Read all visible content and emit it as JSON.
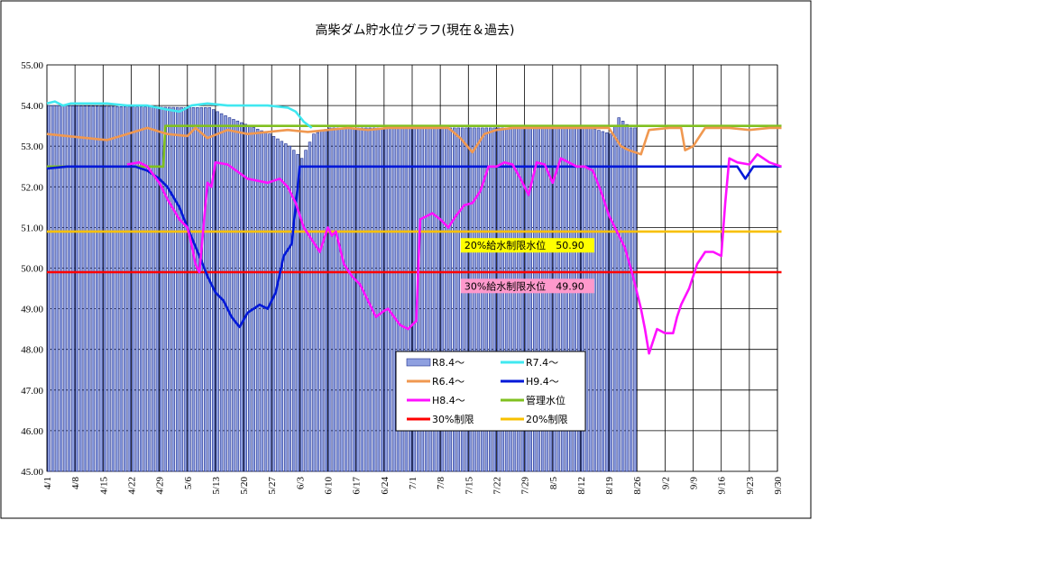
{
  "chart_data": {
    "type": "bar+line",
    "title": "高柴ダム貯水位グラフ(現在＆過去)",
    "ylim": [
      45.0,
      55.0
    ],
    "y_ticks": [
      "45.00",
      "46.00",
      "47.00",
      "48.00",
      "49.00",
      "50.00",
      "51.00",
      "52.00",
      "53.00",
      "54.00",
      "55.00"
    ],
    "x_range": [
      "4/1",
      "9/30"
    ],
    "x_ticks": [
      "4/1",
      "4/8",
      "4/15",
      "4/22",
      "4/29",
      "5/6",
      "5/13",
      "5/20",
      "5/27",
      "6/3",
      "6/10",
      "6/17",
      "6/24",
      "7/1",
      "7/8",
      "7/15",
      "7/22",
      "7/29",
      "8/5",
      "8/12",
      "8/19",
      "8/26",
      "9/2",
      "9/9",
      "9/16",
      "9/23",
      "9/30"
    ],
    "grid": true,
    "legend_position": "lower-center",
    "legend": [
      {
        "label": "R8.4～",
        "color": "#8fa0e0",
        "kind": "bar"
      },
      {
        "label": "R7.4～",
        "color": "#40e8f0",
        "kind": "line"
      },
      {
        "label": "R6.4～",
        "color": "#f09850",
        "kind": "line"
      },
      {
        "label": "H9.4～",
        "color": "#0018d8",
        "kind": "line"
      },
      {
        "label": "H8.4～",
        "color": "#ff10ff",
        "kind": "line"
      },
      {
        "label": "管理水位",
        "color": "#80c020",
        "kind": "line"
      },
      {
        "label": "30%制限",
        "color": "#ff0000",
        "kind": "line"
      },
      {
        "label": "20%制限",
        "color": "#f8c000",
        "kind": "line"
      }
    ],
    "annotations": [
      {
        "text": "20%給水制限水位　50.90",
        "bg": "#ffff00",
        "day": 104,
        "y": 50.45
      },
      {
        "text": "30%給水制限水位　49.90",
        "bg": "#ff99cc",
        "day": 104,
        "y": 49.45
      }
    ],
    "bars": {
      "name": "R8.4～",
      "days": [
        0,
        35,
        40,
        45,
        50,
        55,
        60,
        63,
        66,
        70,
        75,
        80,
        85,
        90,
        95,
        100,
        105,
        110,
        115,
        120,
        125,
        130,
        135,
        140,
        142,
        145,
        146
      ],
      "values": [
        54.0,
        53.95,
        53.95,
        53.7,
        53.5,
        53.3,
        53.0,
        52.7,
        53.3,
        53.45,
        53.45,
        53.45,
        53.45,
        53.45,
        53.45,
        53.45,
        53.45,
        53.45,
        53.45,
        53.45,
        53.45,
        53.45,
        53.45,
        53.3,
        53.7,
        53.45,
        53.45
      ]
    },
    "series": [
      {
        "name": "管理水位",
        "color": "#80c020",
        "days": [
          0,
          29,
          29.5,
          183
        ],
        "values": [
          52.5,
          52.5,
          53.5,
          53.5
        ]
      },
      {
        "name": "20%制限",
        "color": "#f8c000",
        "days": [
          0,
          183
        ],
        "values": [
          50.9,
          50.9
        ]
      },
      {
        "name": "30%制限",
        "color": "#ff0000",
        "days": [
          0,
          183
        ],
        "values": [
          49.9,
          49.9
        ]
      },
      {
        "name": "R7.4～",
        "color": "#40e8f0",
        "days": [
          0,
          2,
          4,
          6,
          10,
          15,
          20,
          25,
          30,
          33,
          36,
          40,
          45,
          50,
          55,
          60,
          62,
          64,
          66
        ],
        "values": [
          54.05,
          54.1,
          54.0,
          54.05,
          54.05,
          54.05,
          54.0,
          54.0,
          53.9,
          53.85,
          54.0,
          54.05,
          54.0,
          54.0,
          54.0,
          53.95,
          53.85,
          53.6,
          53.45
        ]
      },
      {
        "name": "R6.4～",
        "color": "#f09850",
        "days": [
          0,
          5,
          10,
          15,
          20,
          25,
          30,
          35,
          37,
          40,
          45,
          50,
          55,
          60,
          65,
          70,
          75,
          80,
          85,
          90,
          95,
          100,
          103,
          106,
          109,
          112,
          116,
          120,
          125,
          130,
          135,
          140,
          143,
          145,
          148,
          150,
          155,
          158,
          159,
          161,
          164,
          170,
          175,
          180,
          183
        ],
        "values": [
          53.3,
          53.25,
          53.2,
          53.15,
          53.3,
          53.45,
          53.3,
          53.25,
          53.45,
          53.2,
          53.4,
          53.3,
          53.35,
          53.4,
          53.35,
          53.4,
          53.45,
          53.4,
          53.45,
          53.45,
          53.45,
          53.45,
          53.2,
          52.85,
          53.3,
          53.4,
          53.45,
          53.45,
          53.45,
          53.45,
          53.45,
          53.45,
          53.0,
          52.9,
          52.8,
          53.4,
          53.45,
          53.45,
          52.9,
          53.0,
          53.45,
          53.45,
          53.4,
          53.45,
          53.45
        ]
      },
      {
        "name": "H9.4～",
        "color": "#0018d8",
        "days": [
          0,
          5,
          10,
          15,
          20,
          22,
          25,
          28,
          30,
          33,
          35,
          38,
          40,
          42,
          44,
          46,
          48,
          50,
          53,
          55,
          57,
          59,
          61,
          63,
          66,
          70,
          75,
          80,
          90,
          100,
          110,
          120,
          130,
          140,
          150,
          160,
          170,
          172,
          174,
          176,
          178,
          183
        ],
        "values": [
          52.45,
          52.5,
          52.5,
          52.5,
          52.5,
          52.5,
          52.4,
          52.2,
          52.0,
          51.5,
          51.0,
          50.3,
          49.8,
          49.4,
          49.2,
          48.8,
          48.55,
          48.9,
          49.1,
          49.0,
          49.4,
          50.3,
          50.6,
          52.5,
          52.5,
          52.5,
          52.5,
          52.5,
          52.5,
          52.5,
          52.5,
          52.5,
          52.5,
          52.5,
          52.5,
          52.5,
          52.5,
          52.5,
          52.2,
          52.5,
          52.5,
          52.5
        ]
      },
      {
        "name": "H8.4～",
        "color": "#ff10ff",
        "days": [
          20,
          23,
          25,
          28,
          30,
          33,
          35,
          36,
          37,
          38,
          40,
          41,
          42,
          45,
          50,
          55,
          58,
          60,
          62,
          64,
          66,
          68,
          70,
          71,
          72,
          73,
          74,
          76,
          78,
          80,
          82,
          84,
          85,
          88,
          90,
          92,
          93,
          96,
          98,
          100,
          102,
          104,
          106,
          108,
          110,
          112,
          114,
          116,
          118,
          120,
          122,
          124,
          126,
          128,
          130,
          132,
          134,
          136,
          138,
          140,
          142,
          144,
          146,
          148,
          149,
          150,
          152,
          154,
          156,
          157,
          158,
          160,
          162,
          164,
          166,
          168,
          169,
          170,
          172,
          175,
          177,
          180,
          183
        ],
        "values": [
          52.55,
          52.6,
          52.5,
          52.1,
          51.7,
          51.2,
          51.0,
          50.6,
          50.1,
          49.9,
          52.1,
          52.0,
          52.6,
          52.55,
          52.2,
          52.1,
          52.2,
          52.0,
          51.6,
          51.0,
          50.7,
          50.4,
          51.0,
          50.8,
          50.9,
          50.5,
          50.1,
          49.8,
          49.6,
          49.2,
          48.8,
          48.95,
          49.0,
          48.6,
          48.5,
          48.7,
          51.2,
          51.35,
          51.2,
          51.0,
          51.3,
          51.55,
          51.6,
          51.9,
          52.5,
          52.5,
          52.6,
          52.55,
          52.2,
          51.8,
          52.6,
          52.55,
          52.1,
          52.7,
          52.6,
          52.5,
          52.5,
          52.4,
          51.9,
          51.3,
          50.9,
          50.5,
          49.8,
          49.0,
          48.5,
          47.9,
          48.5,
          48.4,
          48.4,
          48.8,
          49.1,
          49.5,
          50.1,
          50.4,
          50.4,
          50.3,
          51.6,
          52.7,
          52.6,
          52.55,
          52.8,
          52.6,
          52.5
        ]
      }
    ]
  }
}
